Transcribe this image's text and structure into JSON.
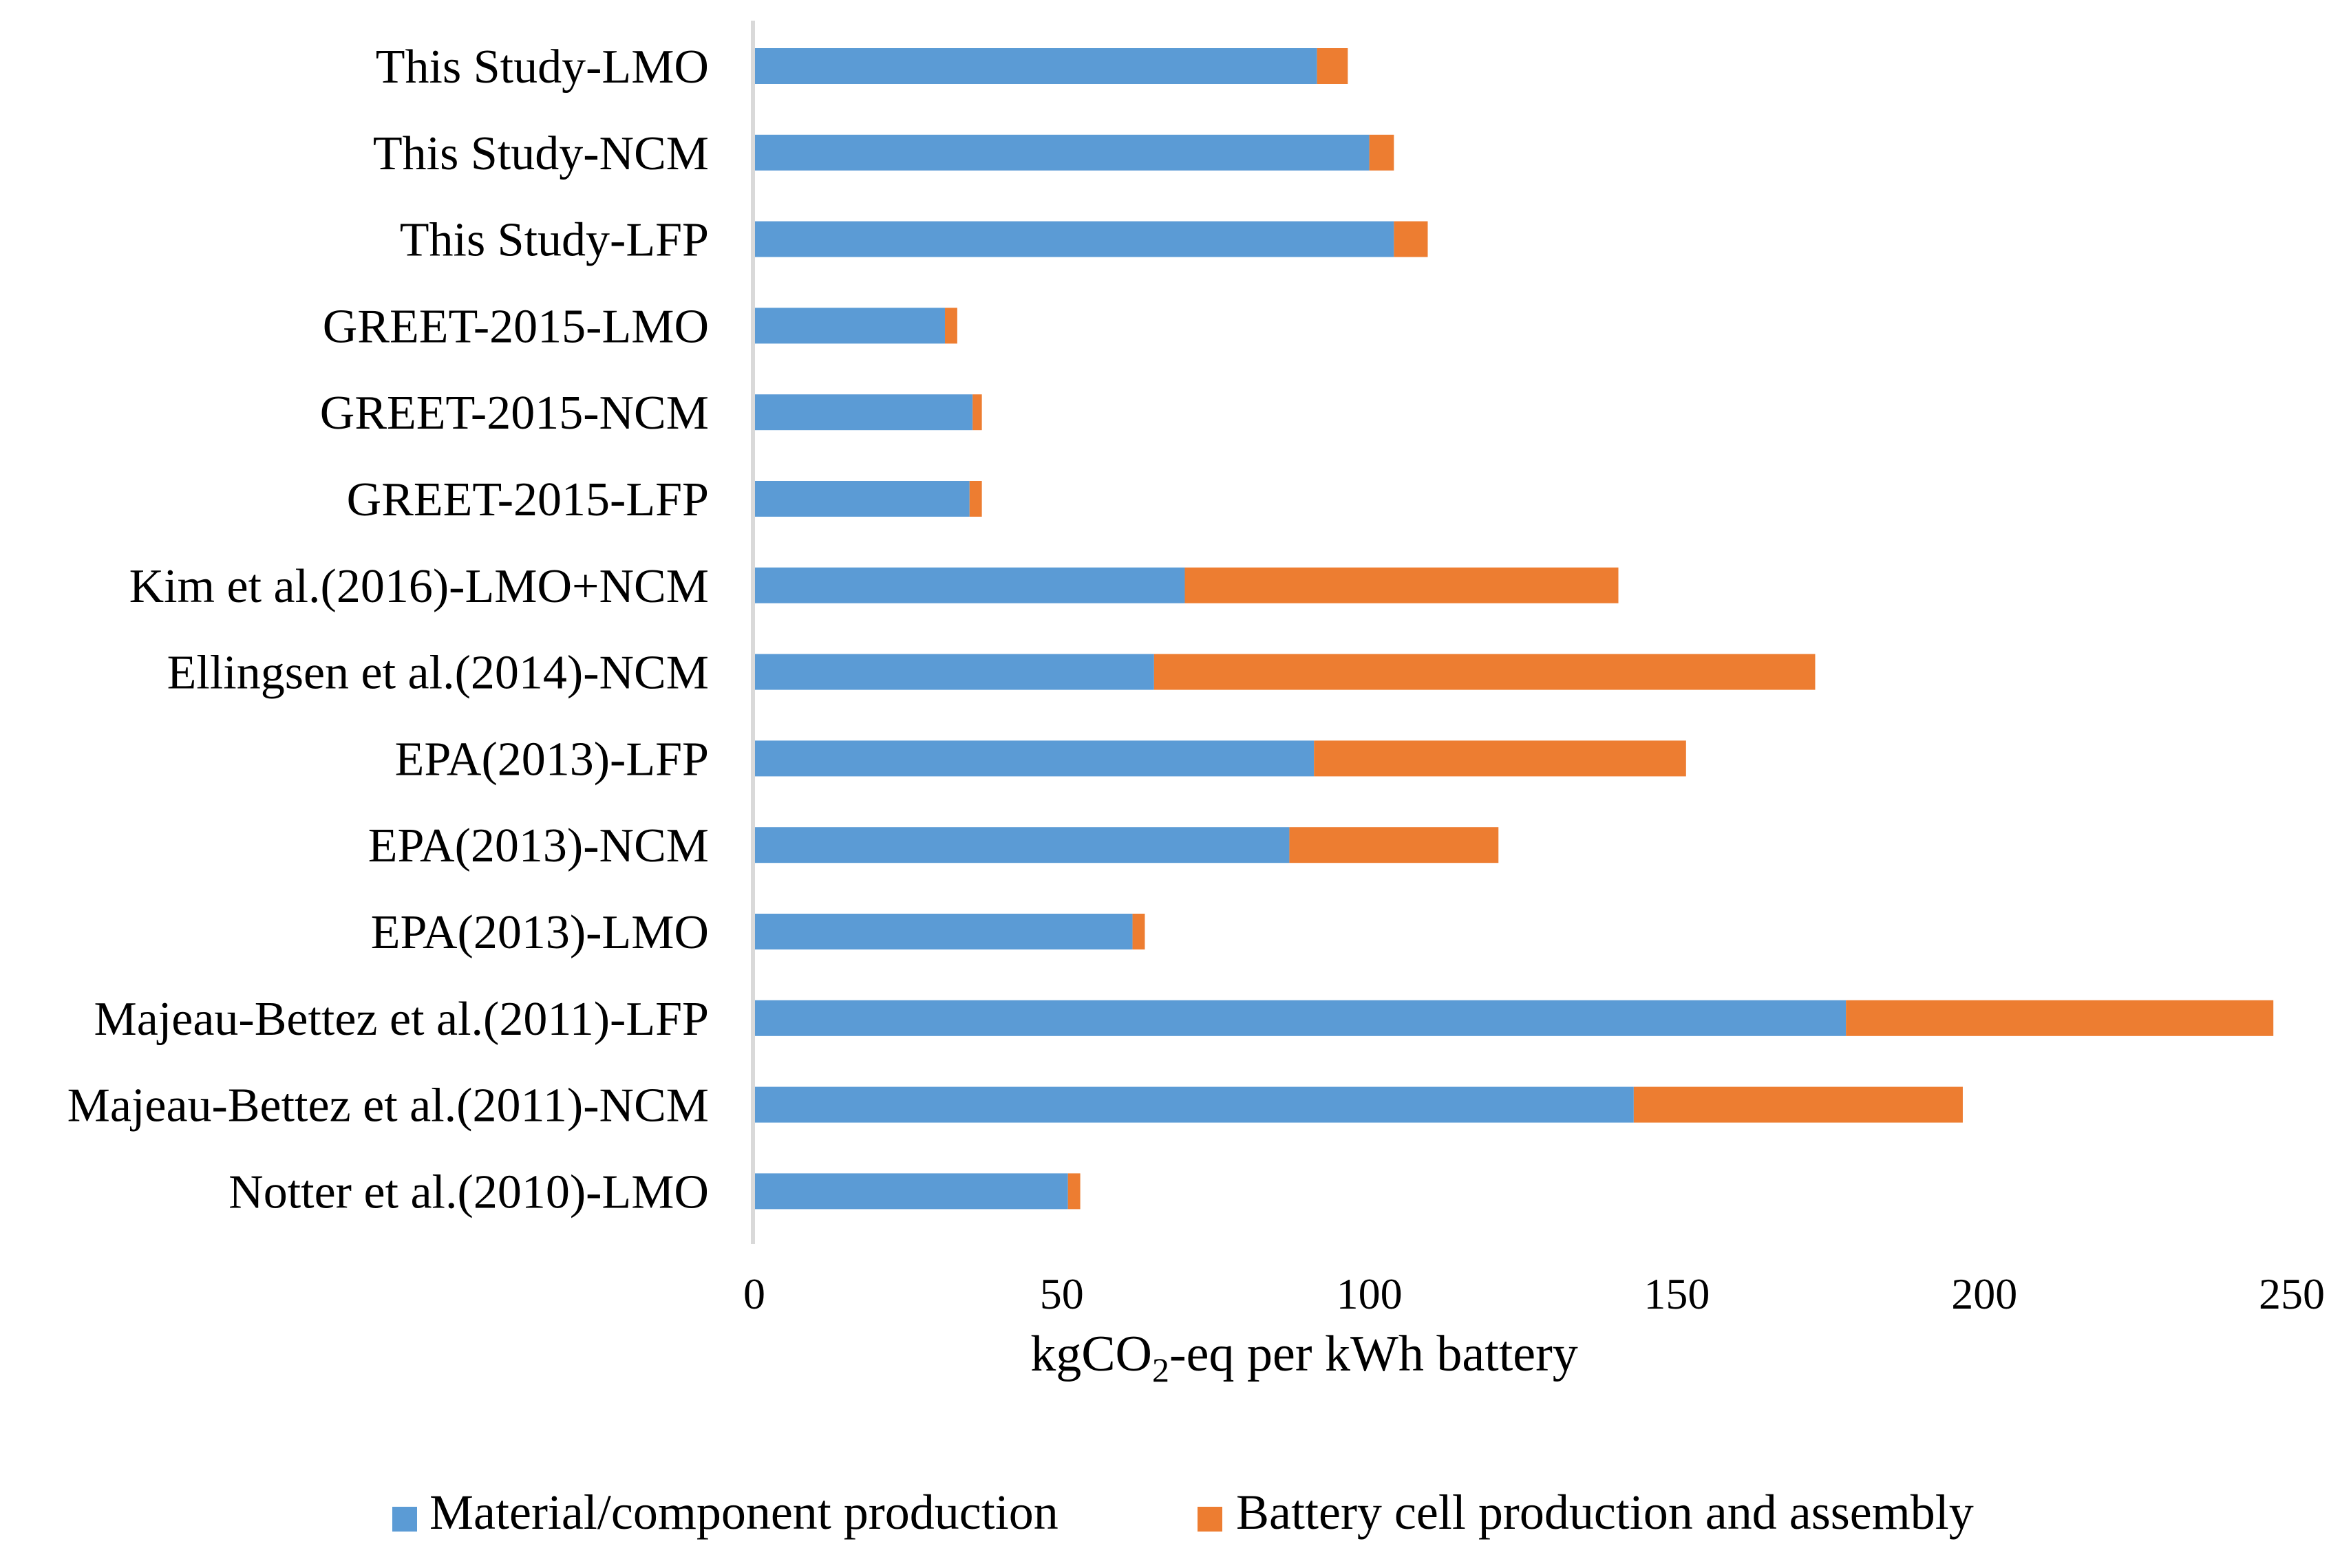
{
  "chart_data": {
    "type": "bar",
    "orientation": "horizontal",
    "stacked": true,
    "title": "",
    "xlabel": "kgCO2-eq per kWh battery",
    "xlabel_parts": {
      "pre": "kgCO",
      "sub": "2",
      "post": "-eq per kWh battery"
    },
    "ylabel": "",
    "xlim": [
      0,
      250
    ],
    "xticks": [
      "0",
      "50",
      "100",
      "150",
      "200",
      "250"
    ],
    "grid": false,
    "legend_position": "bottom",
    "categories": [
      "This Study-LMO",
      "This Study-NCM",
      "This Study-LFP",
      "GREET-2015-LMO",
      "GREET-2015-NCM",
      "GREET-2015-LFP",
      "Kim et al.(2016)-LMO+NCM",
      "Ellingsen et al.(2014)-NCM",
      "EPA(2013)-LFP",
      "EPA(2013)-NCM",
      "EPA(2013)-LMO",
      "Majeau-Bettez et al.(2011)-LFP",
      "Majeau-Bettez et al.(2011)-NCM",
      "Notter et al.(2010)-LMO"
    ],
    "series": [
      {
        "name": "Material/component production",
        "color": "#5b9bd5",
        "values": [
          91.5,
          100,
          104,
          31,
          35.5,
          35,
          70,
          65,
          91,
          87,
          61.5,
          177.5,
          143,
          51
        ]
      },
      {
        "name": "Battery cell production and assembly",
        "color": "#ed7d31",
        "values": [
          5,
          4,
          5.5,
          2,
          1.5,
          2,
          70.5,
          107.5,
          60.5,
          34,
          2,
          69.5,
          53.5,
          2
        ]
      }
    ]
  }
}
